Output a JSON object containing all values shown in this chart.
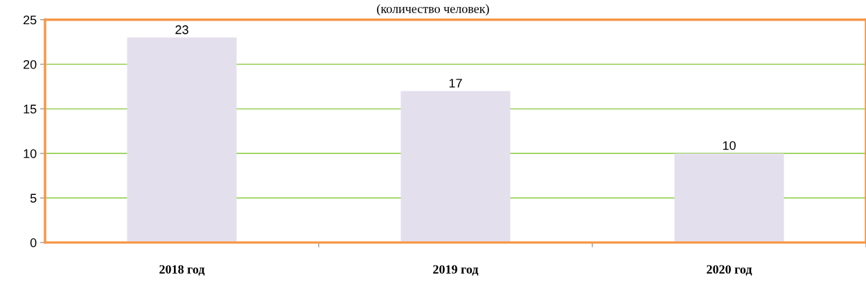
{
  "chart_data": {
    "type": "bar",
    "title": "(количество человек)",
    "categories": [
      "2018 год",
      "2019 год",
      "2020 год"
    ],
    "values": [
      23,
      17,
      10
    ],
    "color": "#e4dfec",
    "ylim": [
      0,
      25
    ],
    "yticks": [
      0,
      5,
      10,
      15,
      20,
      25
    ],
    "grid": "y",
    "data_labels": true
  }
}
